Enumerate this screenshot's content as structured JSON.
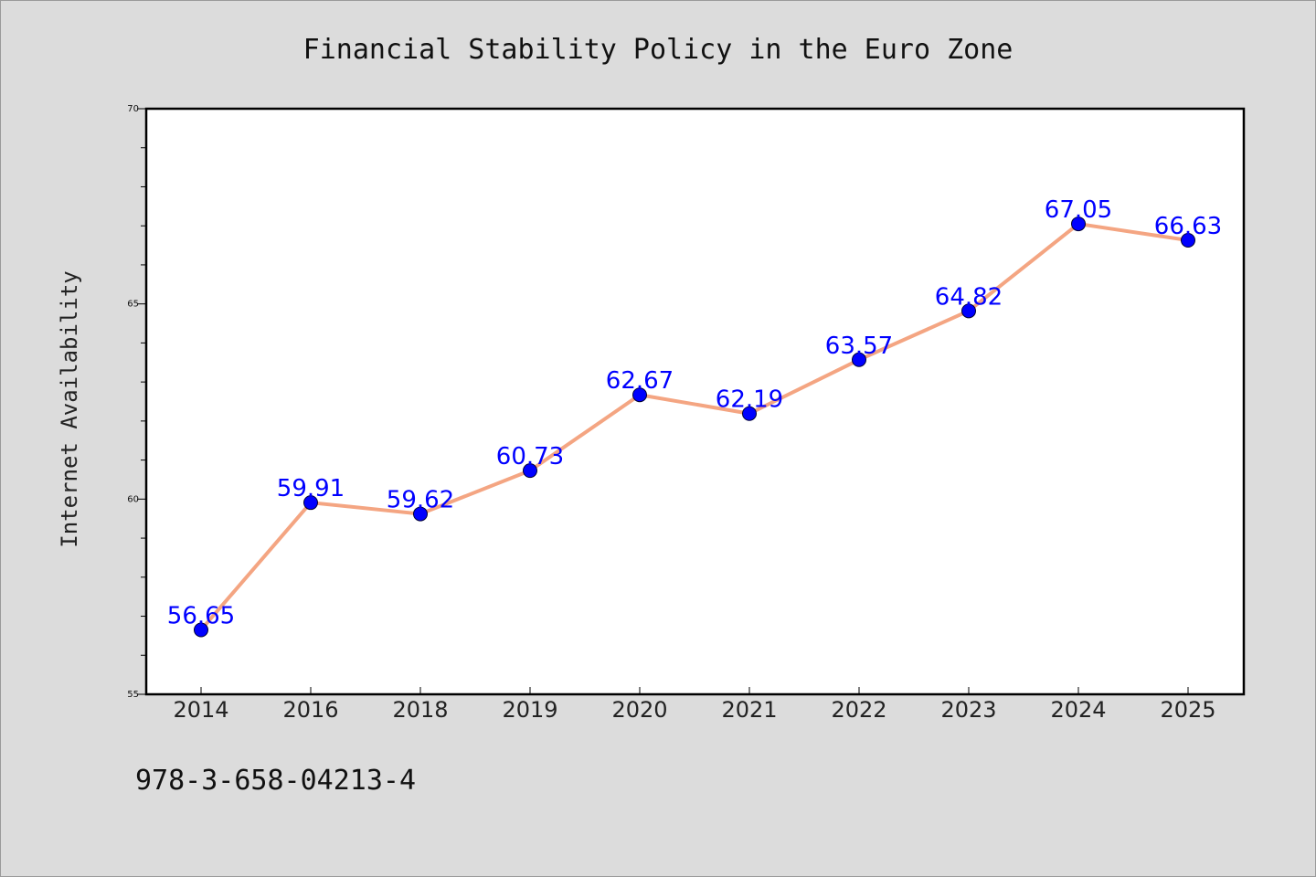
{
  "chart_data": {
    "type": "line",
    "title": "Financial Stability Policy in the Euro Zone",
    "xlabel": "",
    "ylabel": "Internet Availability",
    "categories": [
      "2014",
      "2016",
      "2018",
      "2019",
      "2020",
      "2021",
      "2022",
      "2023",
      "2024",
      "2025"
    ],
    "series": [
      {
        "values": [
          56.65,
          59.91,
          59.62,
          60.73,
          62.67,
          62.19,
          63.57,
          64.82,
          67.05,
          66.63
        ],
        "labels": [
          "56.65",
          "59.91",
          "59.62",
          "60.73",
          "62.67",
          "62.19",
          "63.57",
          "64.82",
          "67.05",
          "66.63"
        ]
      }
    ],
    "ylim": [
      55,
      70
    ],
    "yticks": [
      "55",
      "60",
      "65",
      "70"
    ],
    "grid": false,
    "line_color": "#f4a582",
    "marker_color": "#0000ff",
    "label_color": "#0000ff"
  },
  "footer": {
    "isbn": "978-3-658-04213-4"
  }
}
